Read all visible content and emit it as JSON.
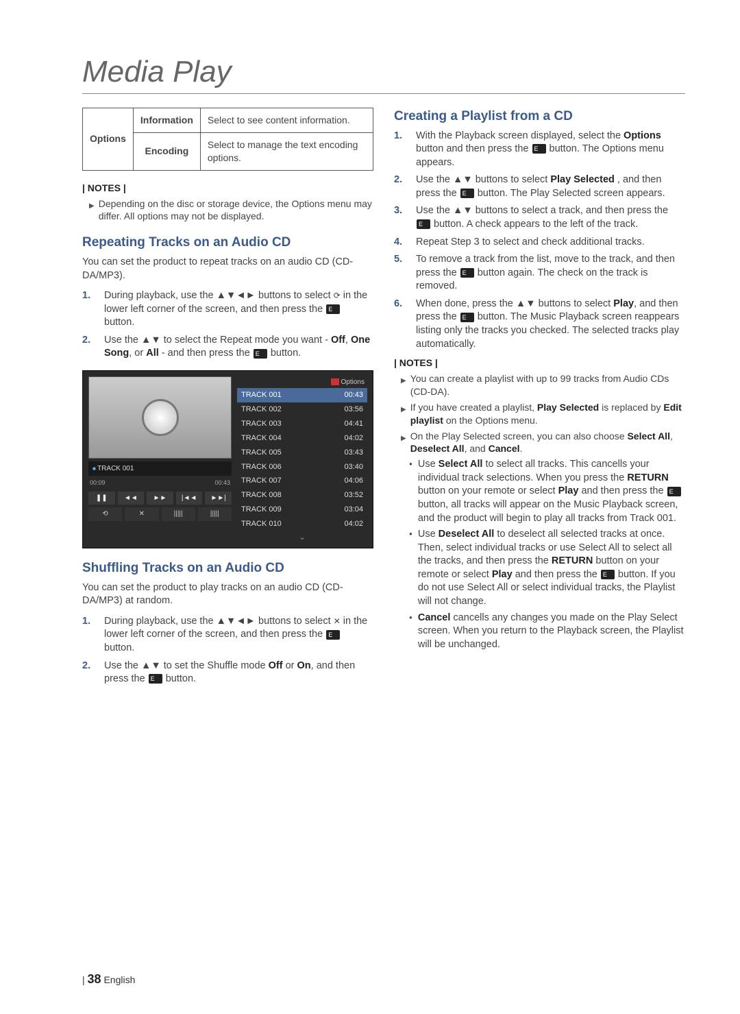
{
  "title": "Media Play",
  "options_table": {
    "group": "Options",
    "rows": [
      {
        "label": "Information",
        "desc": "Select to see content information."
      },
      {
        "label": "Encoding",
        "desc": "Select to manage the text encoding options."
      }
    ]
  },
  "notes_label": "| NOTES |",
  "left": {
    "note1": "Depending on the disc or storage device, the Options menu may differ. All options may not be displayed.",
    "repeat_heading": "Repeating Tracks on an Audio CD",
    "repeat_intro": "You can set the product to repeat tracks on an audio CD (CD-DA/MP3).",
    "repeat_steps": [
      {
        "n": "1.",
        "pre": "During playback, use the ▲▼◄► buttons to select ",
        "mid": " in the lower left corner of the screen, and then press the ",
        "post": " button."
      },
      {
        "n": "2.",
        "pre": "Use the ▲▼ to select the Repeat mode you want - ",
        "bold1": "Off",
        "sep1": ", ",
        "bold2": "One Song",
        "sep2": ", or ",
        "bold3": "All",
        "mid": " - and then press the ",
        "post": " button."
      }
    ],
    "player": {
      "track_label": "TRACK 001",
      "t_start": "00:09",
      "t_end": "00:43",
      "options_label": "Options",
      "tracks": [
        {
          "name": "TRACK 001",
          "time": "00:43"
        },
        {
          "name": "TRACK 002",
          "time": "03:56"
        },
        {
          "name": "TRACK 003",
          "time": "04:41"
        },
        {
          "name": "TRACK 004",
          "time": "04:02"
        },
        {
          "name": "TRACK 005",
          "time": "03:43"
        },
        {
          "name": "TRACK 006",
          "time": "03:40"
        },
        {
          "name": "TRACK 007",
          "time": "04:06"
        },
        {
          "name": "TRACK 008",
          "time": "03:52"
        },
        {
          "name": "TRACK 009",
          "time": "03:04"
        },
        {
          "name": "TRACK 010",
          "time": "04:02"
        }
      ]
    },
    "shuffle_heading": "Shuffling Tracks on an Audio CD",
    "shuffle_intro": "You can set the product to play tracks on an audio CD (CD-DA/MP3) at random.",
    "shuffle_steps": [
      {
        "n": "1.",
        "pre": "During playback, use the ▲▼◄► buttons to select ",
        "mid": " in the lower left corner of the screen, and then press the ",
        "post": " button."
      },
      {
        "n": "2.",
        "pre": "Use the ▲▼ to set the Shuffle mode ",
        "bold1": "Off",
        "sep1": " or ",
        "bold2": "On",
        "mid": ", and then press the ",
        "post": " button."
      }
    ]
  },
  "right": {
    "playlist_heading": "Creating a Playlist from a CD",
    "steps": [
      {
        "n": "1.",
        "t1": "With the Playback screen displayed, select the ",
        "b1": "Options",
        "t2": " button and then press the ",
        "t3": " button. The Options menu appears."
      },
      {
        "n": "2.",
        "t1": "Use the ▲▼ buttons to select ",
        "b1": "Play Selected ",
        "t2": ", and then press the ",
        "t3": " button. The Play Selected screen appears."
      },
      {
        "n": "3.",
        "t1": "Use the ▲▼ buttons to select a track, and then press the ",
        "t3": " button. A check appears to the left of the track."
      },
      {
        "n": "4.",
        "t1": "Repeat Step 3 to select and check additional tracks."
      },
      {
        "n": "5.",
        "t1": "To remove a track from the list, move to the track, and then press the ",
        "t3": " button again. The check on the track is removed."
      },
      {
        "n": "6.",
        "t1": "When done, press the ▲▼ buttons to select ",
        "b1": "Play",
        "t2": ", and then press the ",
        "t3": " button. The Music Playback screen reappears listing only the tracks you checked. The selected tracks play automatically."
      }
    ],
    "notes": [
      "You can create a playlist with up to 99 tracks from Audio CDs (CD-DA).",
      {
        "t1": "If you have created a playlist, ",
        "b1": "Play Selected",
        "t2": " is replaced by ",
        "b2": "Edit playlist",
        "t3": " on the Options menu."
      },
      {
        "t1": "On the Play Selected screen, you can also choose ",
        "b1": "Select All",
        "t2": ", ",
        "b2": "Deselect All",
        "t3": ", and ",
        "b3": "Cancel",
        "t4": "."
      }
    ],
    "bullets": [
      {
        "t1": "Use ",
        "b1": "Select All",
        "t2": " to select all tracks. This cancells your individual track selections. When you press the ",
        "b2": "RETURN",
        "t3": " button on your remote or select ",
        "b3": "Play",
        "t4": " and then press the ",
        "t5": " button, all tracks will appear on the Music Playback screen, and the product will begin to play all tracks from Track 001."
      },
      {
        "t1": "Use ",
        "b1": "Deselect All",
        "t2": " to deselect all selected tracks at once. Then, select individual tracks or use Select All to select all the tracks, and then press the ",
        "b2": "RETURN",
        "t3": " button on your remote or select ",
        "b3": "Play",
        "t4": " and then press the ",
        "t5": " button. If you do not use Select All or select individual tracks, the Playlist will not change."
      },
      {
        "b1": "Cancel",
        "t2": " cancells any changes you made on the Play Select screen. When you return to the Playback screen, the Playlist will be unchanged."
      }
    ]
  },
  "footer": {
    "bar": "| ",
    "page": "38",
    "lang": " English"
  }
}
